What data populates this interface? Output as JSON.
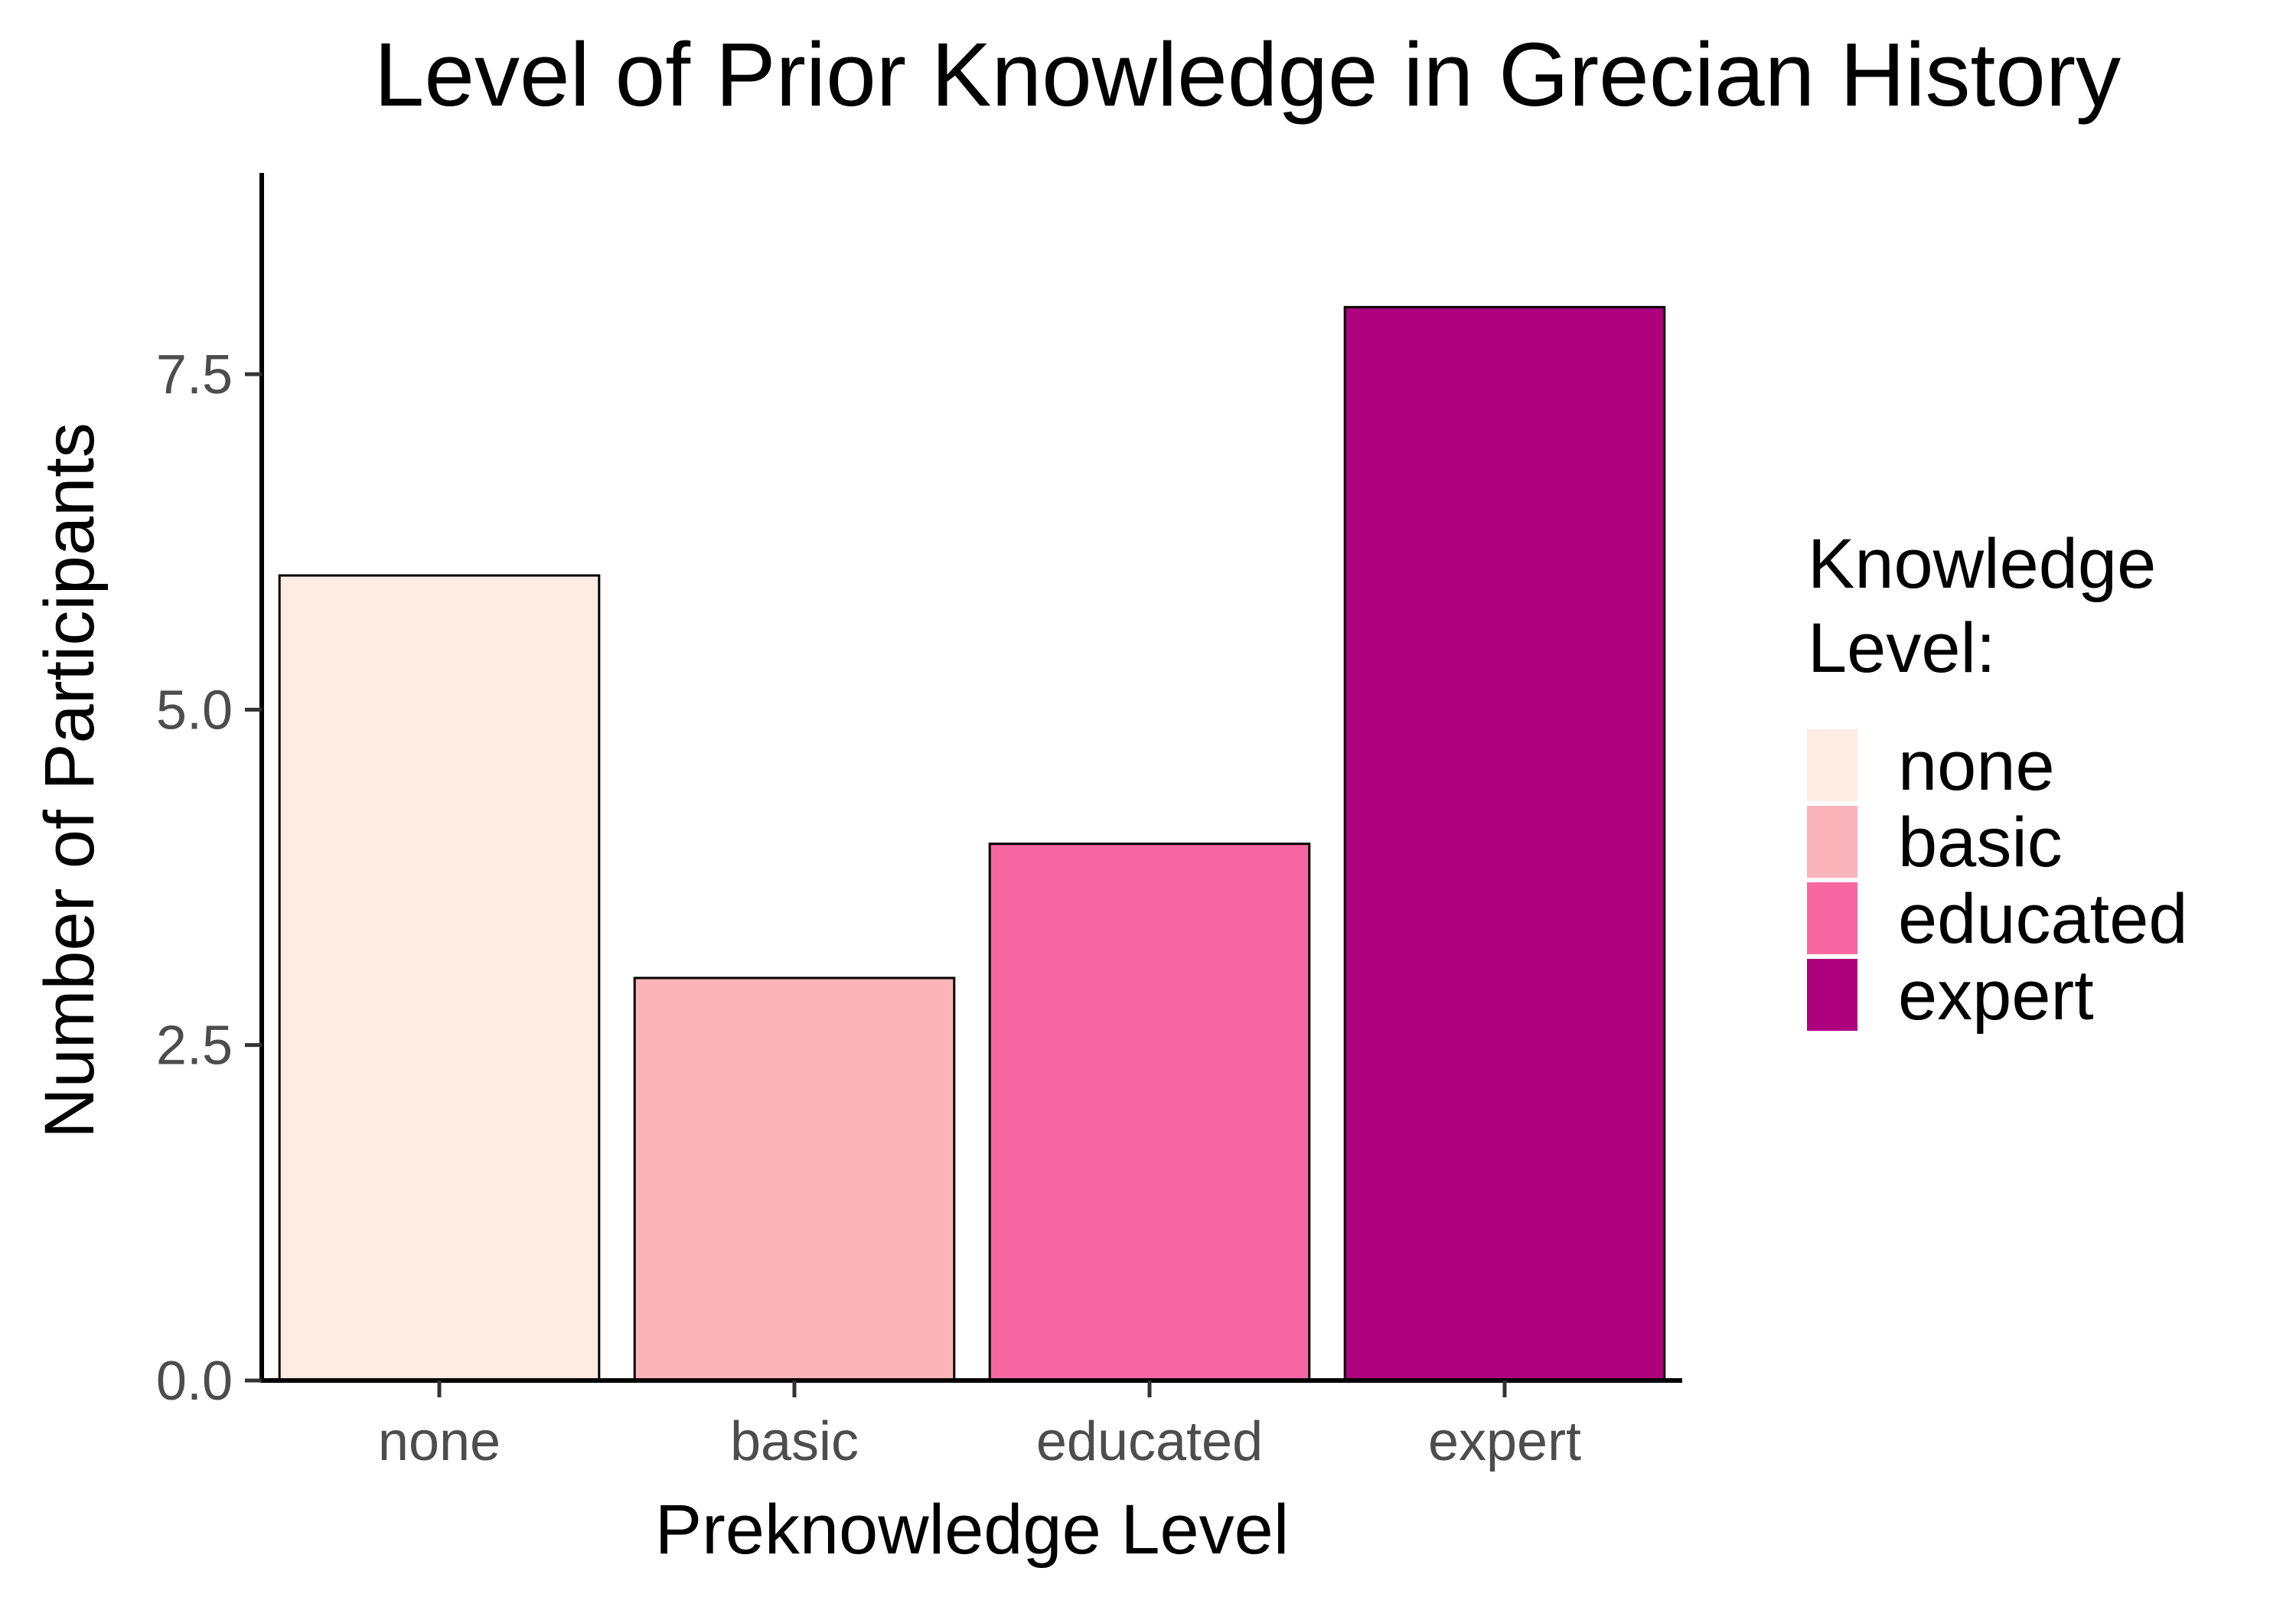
{
  "chart_data": {
    "type": "bar",
    "title": "Level of Prior Knowledge in Grecian History",
    "xlabel": "Preknowledge Level",
    "ylabel": "Number of Participants",
    "categories": [
      "none",
      "basic",
      "educated",
      "expert"
    ],
    "values": [
      6,
      3,
      4,
      8
    ],
    "colors": [
      "#feebe2",
      "#fbb4b9",
      "#f768a1",
      "#ae017e"
    ],
    "ylim": [
      0,
      9
    ],
    "yticks": [
      0.0,
      2.5,
      5.0,
      7.5
    ],
    "ytick_labels": [
      "0.0",
      "2.5",
      "5.0",
      "7.5"
    ],
    "grid": false,
    "legend": {
      "title_lines": [
        "Knowledge",
        "Level:"
      ],
      "entries": [
        "none",
        "basic",
        "educated",
        "expert"
      ],
      "placement": "right"
    }
  }
}
